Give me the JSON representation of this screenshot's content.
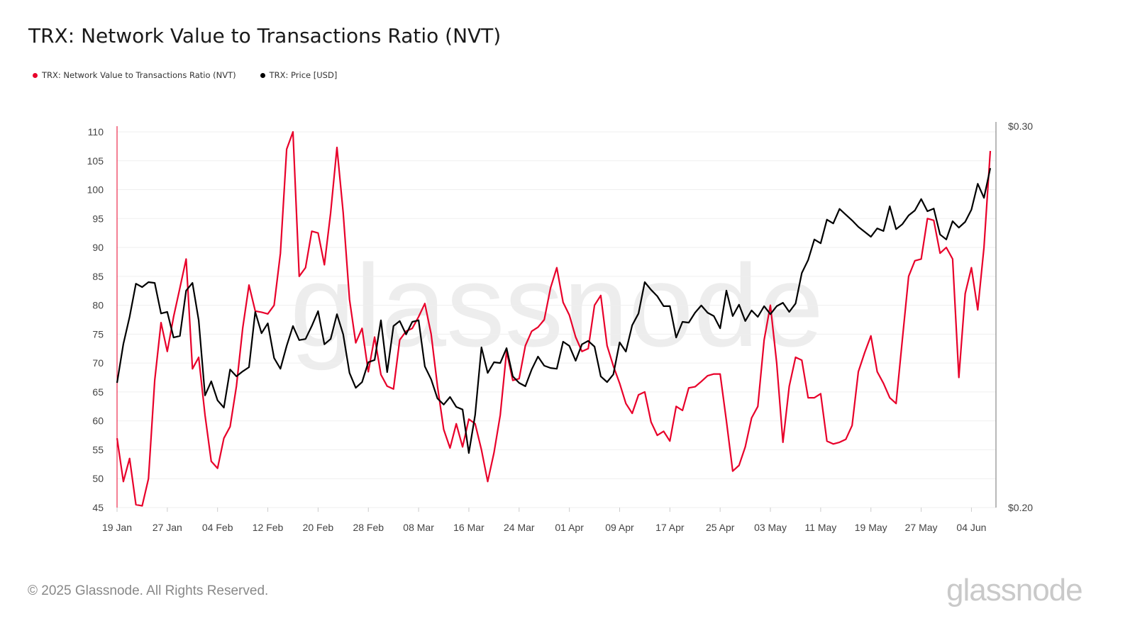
{
  "title": "TRX: Network Value to Transactions Ratio (NVT)",
  "footer": "© 2025 Glassnode. All Rights Reserved.",
  "logo_text": "glassnode",
  "watermark_text": "glassnode",
  "colors": {
    "nvt": "#e8002a",
    "price": "#000000",
    "grid": "#eeeeee",
    "right_axis": "#888888"
  },
  "chart_data": {
    "type": "line",
    "title": "TRX: Network Value to Transactions Ratio (NVT)",
    "legend_placement": "top-left",
    "grid": true,
    "x_tick_labels": [
      "19 Jan",
      "27 Jan",
      "04 Feb",
      "12 Feb",
      "20 Feb",
      "28 Feb",
      "08 Mar",
      "16 Mar",
      "24 Mar",
      "01 Apr",
      "09 Apr",
      "17 Apr",
      "25 Apr",
      "03 May",
      "11 May",
      "19 May",
      "27 May",
      "04 Jun"
    ],
    "x_tick_dates": [
      "2025-01-19",
      "2025-01-27",
      "2025-02-04",
      "2025-02-12",
      "2025-02-20",
      "2025-02-28",
      "2025-03-08",
      "2025-03-16",
      "2025-03-24",
      "2025-04-01",
      "2025-04-09",
      "2025-04-17",
      "2025-04-25",
      "2025-05-03",
      "2025-05-11",
      "2025-05-19",
      "2025-05-27",
      "2025-06-04"
    ],
    "x": [
      "2025-01-19",
      "2025-01-20",
      "2025-01-21",
      "2025-01-22",
      "2025-01-23",
      "2025-01-24",
      "2025-01-25",
      "2025-01-26",
      "2025-01-27",
      "2025-01-28",
      "2025-01-29",
      "2025-01-30",
      "2025-01-31",
      "2025-02-01",
      "2025-02-02",
      "2025-02-03",
      "2025-02-04",
      "2025-02-05",
      "2025-02-06",
      "2025-02-07",
      "2025-02-08",
      "2025-02-09",
      "2025-02-10",
      "2025-02-11",
      "2025-02-12",
      "2025-02-13",
      "2025-02-14",
      "2025-02-15",
      "2025-02-16",
      "2025-02-17",
      "2025-02-18",
      "2025-02-19",
      "2025-02-20",
      "2025-02-21",
      "2025-02-22",
      "2025-02-23",
      "2025-02-24",
      "2025-02-25",
      "2025-02-26",
      "2025-02-27",
      "2025-02-28",
      "2025-03-01",
      "2025-03-02",
      "2025-03-03",
      "2025-03-04",
      "2025-03-05",
      "2025-03-06",
      "2025-03-07",
      "2025-03-08",
      "2025-03-09",
      "2025-03-10",
      "2025-03-11",
      "2025-03-12",
      "2025-03-13",
      "2025-03-14",
      "2025-03-15",
      "2025-03-16",
      "2025-03-17",
      "2025-03-18",
      "2025-03-19",
      "2025-03-20",
      "2025-03-21",
      "2025-03-22",
      "2025-03-23",
      "2025-03-24",
      "2025-03-25",
      "2025-03-26",
      "2025-03-27",
      "2025-03-28",
      "2025-03-29",
      "2025-03-30",
      "2025-03-31",
      "2025-04-01",
      "2025-04-02",
      "2025-04-03",
      "2025-04-04",
      "2025-04-05",
      "2025-04-06",
      "2025-04-07",
      "2025-04-08",
      "2025-04-09",
      "2025-04-10",
      "2025-04-11",
      "2025-04-12",
      "2025-04-13",
      "2025-04-14",
      "2025-04-15",
      "2025-04-16",
      "2025-04-17",
      "2025-04-18",
      "2025-04-19",
      "2025-04-20",
      "2025-04-21",
      "2025-04-22",
      "2025-04-23",
      "2025-04-24",
      "2025-04-25",
      "2025-04-26",
      "2025-04-27",
      "2025-04-28",
      "2025-04-29",
      "2025-04-30",
      "2025-05-01",
      "2025-05-02",
      "2025-05-03",
      "2025-05-04",
      "2025-05-05",
      "2025-05-06",
      "2025-05-07",
      "2025-05-08",
      "2025-05-09",
      "2025-05-10",
      "2025-05-11",
      "2025-05-12",
      "2025-05-13",
      "2025-05-14",
      "2025-05-15",
      "2025-05-16",
      "2025-05-17",
      "2025-05-18",
      "2025-05-19",
      "2025-05-20",
      "2025-05-21",
      "2025-05-22",
      "2025-05-23",
      "2025-05-24",
      "2025-05-25",
      "2025-05-26",
      "2025-05-27",
      "2025-05-28",
      "2025-05-29",
      "2025-05-30",
      "2025-05-31",
      "2025-06-01",
      "2025-06-02",
      "2025-06-03",
      "2025-06-04",
      "2025-06-05",
      "2025-06-06",
      "2025-06-07"
    ],
    "y_left": {
      "ticks": [
        45,
        50,
        55,
        60,
        65,
        70,
        75,
        80,
        85,
        90,
        95,
        100,
        105,
        110
      ],
      "range": [
        45,
        110
      ]
    },
    "y_right": {
      "tick_labels": [
        "$0.20",
        "$0.30"
      ],
      "range": [
        0.2,
        0.3
      ]
    },
    "series": [
      {
        "name": "TRX: Network Value to Transactions Ratio (NVT)",
        "axis": "left",
        "color": "#e8002a",
        "values": [
          57,
          49.5,
          53.5,
          45.5,
          45.3,
          50,
          67,
          77,
          72,
          78,
          83,
          88,
          69,
          71,
          61,
          53,
          51.8,
          57,
          59,
          66,
          76,
          83.5,
          79,
          78.8,
          78.5,
          80,
          89,
          107,
          110,
          85,
          86.5,
          92.8,
          92.5,
          87,
          96,
          107.3,
          96,
          81,
          73.5,
          76,
          68.5,
          74.5,
          68,
          66,
          65.5,
          74,
          75.5,
          76,
          78,
          80.3,
          75,
          66,
          58.5,
          55.3,
          59.5,
          55.5,
          60.3,
          59.5,
          55,
          49.5,
          54.5,
          61,
          72,
          67,
          67.3,
          73,
          75.5,
          76.2,
          77.5,
          83,
          86.5,
          80.5,
          78.3,
          74.5,
          72,
          72.5,
          80,
          81.7,
          73,
          69.5,
          66.5,
          63,
          61.3,
          64.5,
          65,
          59.8,
          57.5,
          58.2,
          56.5,
          62.5,
          61.8,
          65.7,
          65.9,
          66.8,
          67.8,
          68.1,
          68.1,
          60,
          51.3,
          52.3,
          55.5,
          60.5,
          62.5,
          74,
          80,
          70,
          56.3,
          66,
          71,
          70.5,
          64,
          64,
          64.7,
          56.5,
          56,
          56.3,
          56.8,
          59.2,
          68.5,
          71.8,
          74.7,
          68.5,
          66.5,
          64,
          63,
          74,
          85,
          87.7,
          88,
          95,
          94.7,
          89,
          90,
          88,
          67.5,
          82,
          86.5,
          79.2,
          90,
          106.7
        ]
      },
      {
        "name": "TRX: Price [USD]",
        "axis": "right",
        "color": "#000000",
        "values": [
          0.2327,
          0.2429,
          0.25,
          0.2587,
          0.2578,
          0.2591,
          0.2589,
          0.2509,
          0.2513,
          0.2446,
          0.245,
          0.2569,
          0.2589,
          0.2491,
          0.2294,
          0.2331,
          0.2281,
          0.2262,
          0.2362,
          0.2344,
          0.2357,
          0.2368,
          0.2513,
          0.2457,
          0.2483,
          0.2392,
          0.2364,
          0.2424,
          0.2476,
          0.2439,
          0.2442,
          0.2476,
          0.2515,
          0.2428,
          0.2442,
          0.2507,
          0.2454,
          0.2353,
          0.2314,
          0.2329,
          0.2381,
          0.2387,
          0.2491,
          0.2355,
          0.2476,
          0.2489,
          0.2454,
          0.2487,
          0.2491,
          0.237,
          0.2336,
          0.2286,
          0.227,
          0.229,
          0.2264,
          0.2257,
          0.2143,
          0.2243,
          0.242,
          0.2353,
          0.2381,
          0.2379,
          0.2418,
          0.2344,
          0.2327,
          0.2318,
          0.2362,
          0.2396,
          0.2372,
          0.2366,
          0.2364,
          0.2435,
          0.2424,
          0.2385,
          0.2428,
          0.2437,
          0.2422,
          0.2344,
          0.2329,
          0.2349,
          0.2433,
          0.2409,
          0.2478,
          0.2509,
          0.2591,
          0.2571,
          0.2554,
          0.2528,
          0.2528,
          0.2446,
          0.2487,
          0.2485,
          0.2511,
          0.253,
          0.2511,
          0.2502,
          0.247,
          0.2569,
          0.2502,
          0.2532,
          0.2489,
          0.2517,
          0.25,
          0.2528,
          0.2507,
          0.2528,
          0.2537,
          0.2513,
          0.2535,
          0.2615,
          0.2649,
          0.2703,
          0.2693,
          0.2755,
          0.2745,
          0.2783,
          0.2768,
          0.2753,
          0.2736,
          0.2723,
          0.271,
          0.2732,
          0.2725,
          0.279,
          0.273,
          0.2743,
          0.2766,
          0.2779,
          0.2809,
          0.2777,
          0.2784,
          0.2716,
          0.2703,
          0.2751,
          0.2734,
          0.2749,
          0.2781,
          0.2849,
          0.2812,
          0.289
        ]
      }
    ]
  }
}
